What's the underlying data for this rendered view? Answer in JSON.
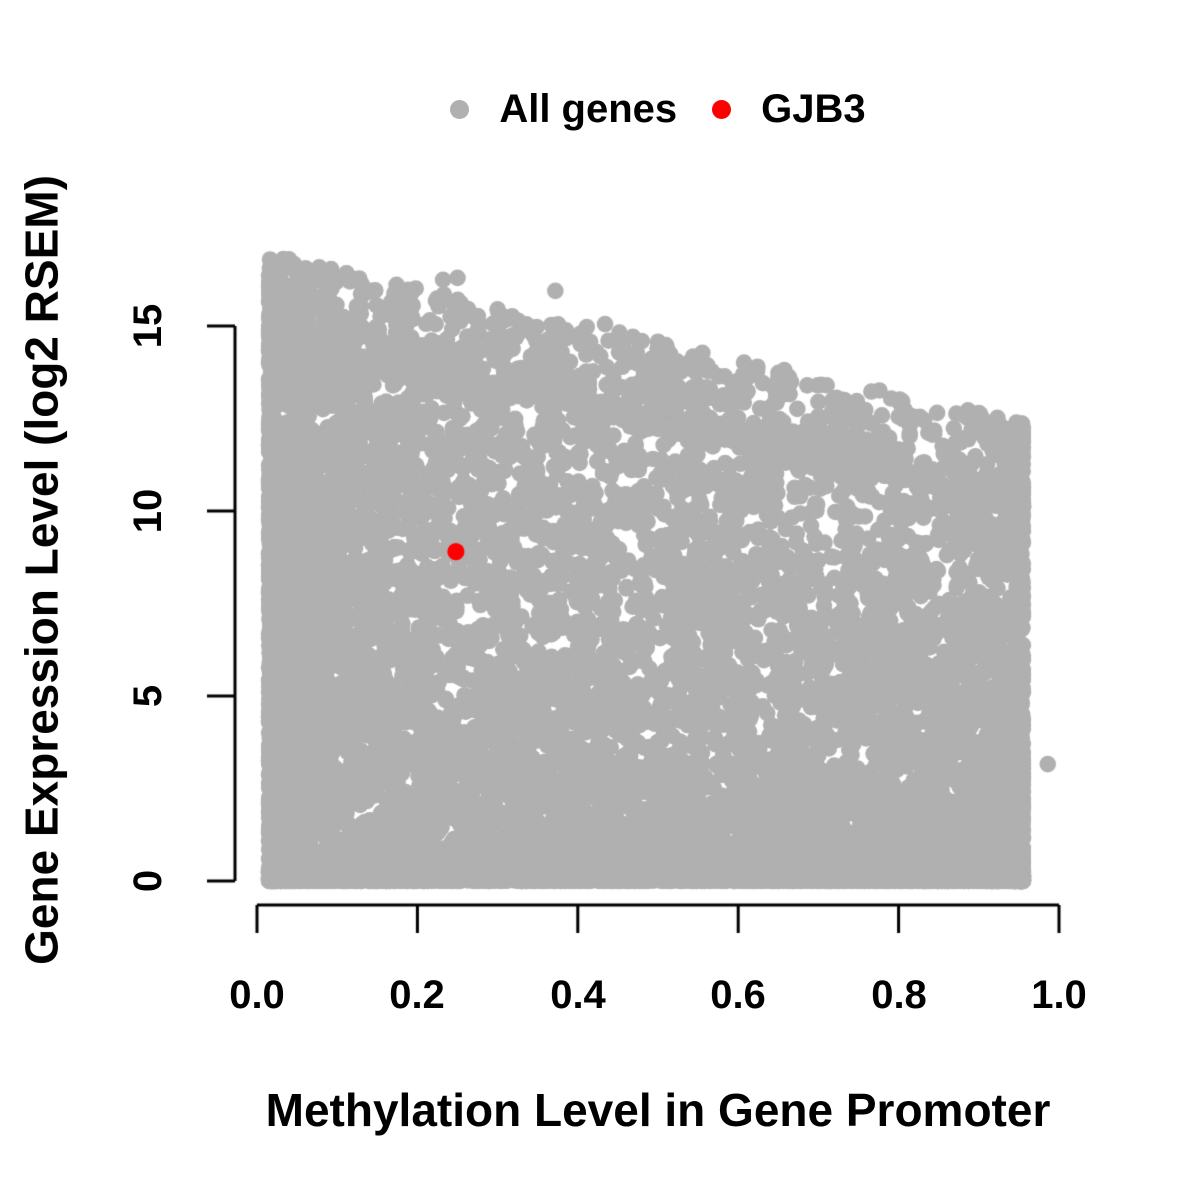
{
  "figure": {
    "background": "#ffffff"
  },
  "chart_data": {
    "type": "scatter",
    "title": "",
    "xlabel": "Methylation Level in Gene Promoter",
    "ylabel": "Gene Expression Level (log2 RSEM)",
    "xlim": [
      0,
      1.0
    ],
    "ylim": [
      0,
      17
    ],
    "grid": false,
    "axis_color": "#000000",
    "axis_line_width": 3,
    "x_ticks": {
      "values": [
        0,
        0.2,
        0.4,
        0.6,
        0.8,
        1.0
      ],
      "labels": [
        "0.0",
        "0.2",
        "0.4",
        "0.6",
        "0.8",
        "1.0"
      ]
    },
    "y_ticks": {
      "values": [
        0,
        5,
        10,
        15
      ],
      "labels": [
        "0",
        "5",
        "10",
        "15"
      ]
    },
    "legend": {
      "position": "top-center",
      "entries": [
        {
          "label": "All genes",
          "color": "#b0b0b0",
          "marker": "filled-circle"
        },
        {
          "label": "GJB3",
          "color": "#ff0000",
          "marker": "filled-circle"
        }
      ]
    },
    "series": [
      {
        "name": "All genes",
        "color": "#b0b0b0",
        "marker": "filled-circle",
        "marker_radius_px": 8.3,
        "points_are": "generated-dense-cloud",
        "n_points": 12000,
        "seed": 1337,
        "x_range": [
          0.015,
          0.955
        ],
        "solid_top_envelope": {
          "y_at_x0": 14.8,
          "y_at_xmax": 10.1
        },
        "scatter_top_envelope": {
          "y_at_x0": 17.0,
          "y_at_xmax": 12.4
        },
        "mixture": {
          "left_weight": 0.46,
          "uniform_weight": 0.3,
          "right_weight": 0.24,
          "left_pow": 2.1,
          "right_pow": 2.6,
          "main_frac": 0.7,
          "fringe_frac": 0.12,
          "bottom_frac": 0.18,
          "main_thin_exponent_base": 1.0,
          "main_thin_exponent_slope": 1.35,
          "fringe_pow": 2.2,
          "bottom_band_max_y": 0.35
        },
        "notable_points": [
          [
            0.04,
            16.8
          ],
          [
            0.028,
            16.35
          ],
          [
            0.055,
            16.3
          ],
          [
            0.145,
            15.95
          ],
          [
            0.232,
            16.25
          ],
          [
            0.25,
            16.3
          ],
          [
            0.372,
            15.95
          ],
          [
            0.3,
            15.45
          ],
          [
            0.434,
            15.05
          ],
          [
            0.516,
            13.9
          ],
          [
            0.547,
            13.75
          ],
          [
            0.624,
            13.9
          ],
          [
            0.662,
            13.3
          ],
          [
            0.7,
            12.95
          ],
          [
            0.745,
            12.85
          ],
          [
            0.8,
            12.55
          ],
          [
            0.832,
            12.45
          ],
          [
            0.9,
            12.65
          ],
          [
            0.926,
            12.15
          ],
          [
            0.986,
            3.16
          ]
        ]
      },
      {
        "name": "GJB3",
        "color": "#ff0000",
        "marker": "filled-circle",
        "marker_radius_px": 8.6,
        "points": [
          [
            0.248,
            8.9
          ]
        ]
      }
    ]
  }
}
